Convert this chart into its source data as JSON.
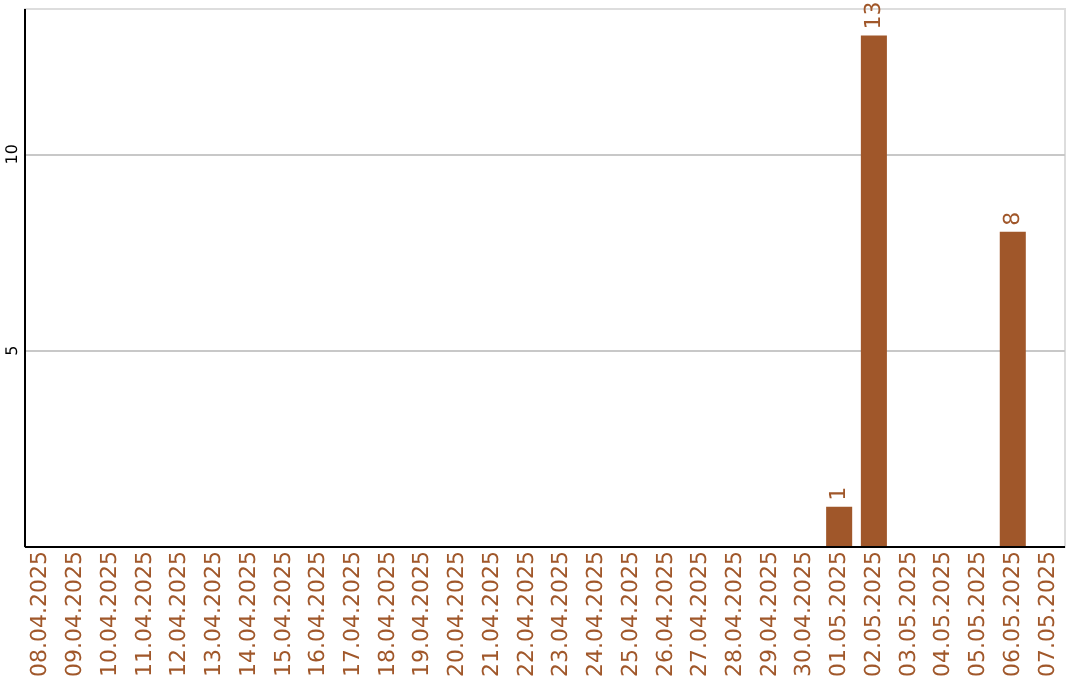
{
  "chart_data": {
    "type": "bar",
    "categories": [
      "08.04.2025",
      "09.04.2025",
      "10.04.2025",
      "11.04.2025",
      "12.04.2025",
      "13.04.2025",
      "14.04.2025",
      "15.04.2025",
      "16.04.2025",
      "17.04.2025",
      "18.04.2025",
      "19.04.2025",
      "20.04.2025",
      "21.04.2025",
      "22.04.2025",
      "23.04.2025",
      "24.04.2025",
      "25.04.2025",
      "26.04.2025",
      "27.04.2025",
      "28.04.2025",
      "29.04.2025",
      "30.04.2025",
      "01.05.2025",
      "02.05.2025",
      "03.05.2025",
      "04.05.2025",
      "05.05.2025",
      "06.05.2025",
      "07.05.2025"
    ],
    "values": [
      0,
      0,
      0,
      0,
      0,
      0,
      0,
      0,
      0,
      0,
      0,
      0,
      0,
      0,
      0,
      0,
      0,
      0,
      0,
      0,
      0,
      0,
      0,
      1,
      13,
      0,
      0,
      0,
      8,
      0
    ],
    "value_labels": [
      null,
      null,
      null,
      null,
      null,
      null,
      null,
      null,
      null,
      null,
      null,
      null,
      null,
      null,
      null,
      null,
      null,
      null,
      null,
      null,
      null,
      null,
      null,
      "1",
      "13",
      null,
      null,
      null,
      "8",
      null
    ],
    "color": "#a0572a",
    "ylim": [
      0,
      13.7
    ],
    "yticks": [
      5,
      10
    ],
    "grid": "y"
  }
}
